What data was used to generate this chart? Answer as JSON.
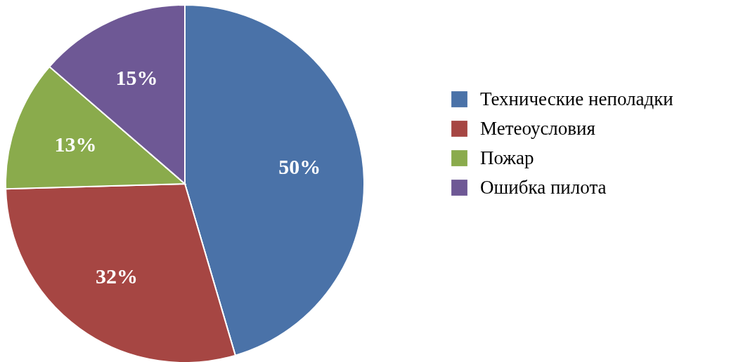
{
  "chart_data": {
    "type": "pie",
    "categories": [
      "Технические неполадки",
      "Метеоусловия",
      "Пожар",
      "Ошибка пилота"
    ],
    "values": [
      50,
      32,
      13,
      15
    ],
    "value_labels": [
      "50%",
      "32%",
      "13%",
      "15%"
    ],
    "colors": [
      "#4a72a8",
      "#a64643",
      "#8aab4c",
      "#6e5895"
    ],
    "legend": "right"
  }
}
